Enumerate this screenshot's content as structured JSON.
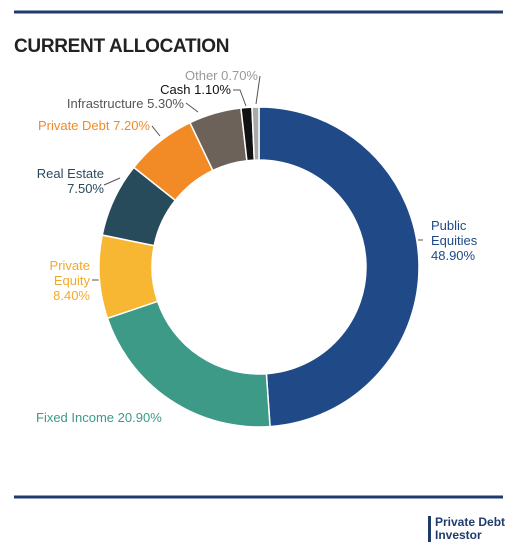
{
  "chart_data": {
    "type": "pie",
    "title": "CURRENT ALLOCATION",
    "donut": true,
    "categories": [
      "Public Equities",
      "Fixed Income",
      "Private Equity",
      "Real Estate",
      "Private Debt",
      "Infrastructure",
      "Cash",
      "Other"
    ],
    "values": [
      48.9,
      20.9,
      8.4,
      7.5,
      7.2,
      5.3,
      1.1,
      0.7
    ],
    "value_labels": [
      "48.90%",
      "20.90%",
      "8.40%",
      "7.50%",
      "7.20%",
      "5.30%",
      "1.10%",
      "0.70%"
    ],
    "colors": [
      "#1f4a87",
      "#3c9a86",
      "#f7b733",
      "#284b5b",
      "#f28a25",
      "#6c625a",
      "#111111",
      "#a9a9a9"
    ]
  },
  "logo": [
    "Private Debt",
    "Investor"
  ]
}
